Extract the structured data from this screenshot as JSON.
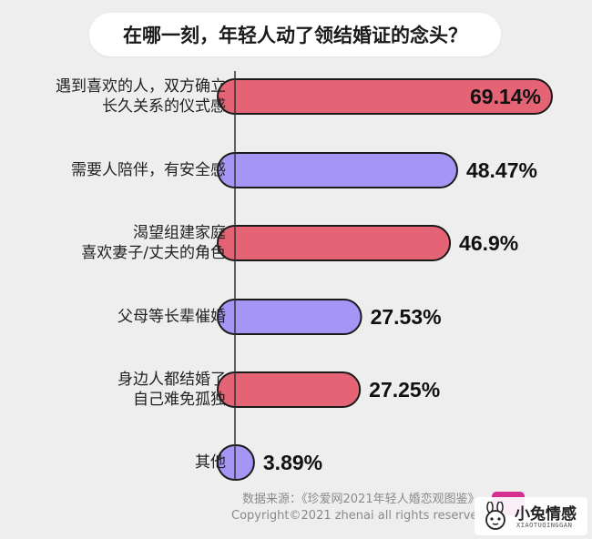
{
  "title": "在哪一刻，年轻人动了领结婚证的念头？",
  "colors": {
    "pink": "#e46475",
    "purple": "#a596f6",
    "stroke": "#1a1a1a",
    "axis": "#333333"
  },
  "chart_data": {
    "type": "bar",
    "orientation": "horizontal",
    "categories": [
      [
        "遇到喜欢的人，双方确立",
        "长久关系的仪式感"
      ],
      [
        "需要人陪伴，有安全感"
      ],
      [
        "渴望组建家庭",
        "喜欢妻子/丈夫的角色"
      ],
      [
        "父母等长辈催婚"
      ],
      [
        "身边人都结婚了",
        "自己难免孤独"
      ],
      [
        "其他"
      ]
    ],
    "values": [
      69.14,
      48.47,
      46.9,
      27.53,
      27.25,
      3.89
    ],
    "value_labels": [
      "69.14%",
      "48.47%",
      "46.9%",
      "27.53%",
      "27.25%",
      "3.89%"
    ],
    "bar_colors": [
      "pink",
      "purple",
      "pink",
      "purple",
      "pink",
      "purple"
    ],
    "xlabel": "",
    "ylabel": "",
    "xlim": [
      0,
      69.14
    ],
    "grid": false
  },
  "footer": {
    "source": "数据来源：《珍爱网2021年轻人婚恋观图鉴》",
    "copyright": "Copyright©2021  zhenai  all rights reserved"
  },
  "watermark": {
    "text": "小兔情感",
    "sub": "XIAOTUQINGGAN"
  }
}
